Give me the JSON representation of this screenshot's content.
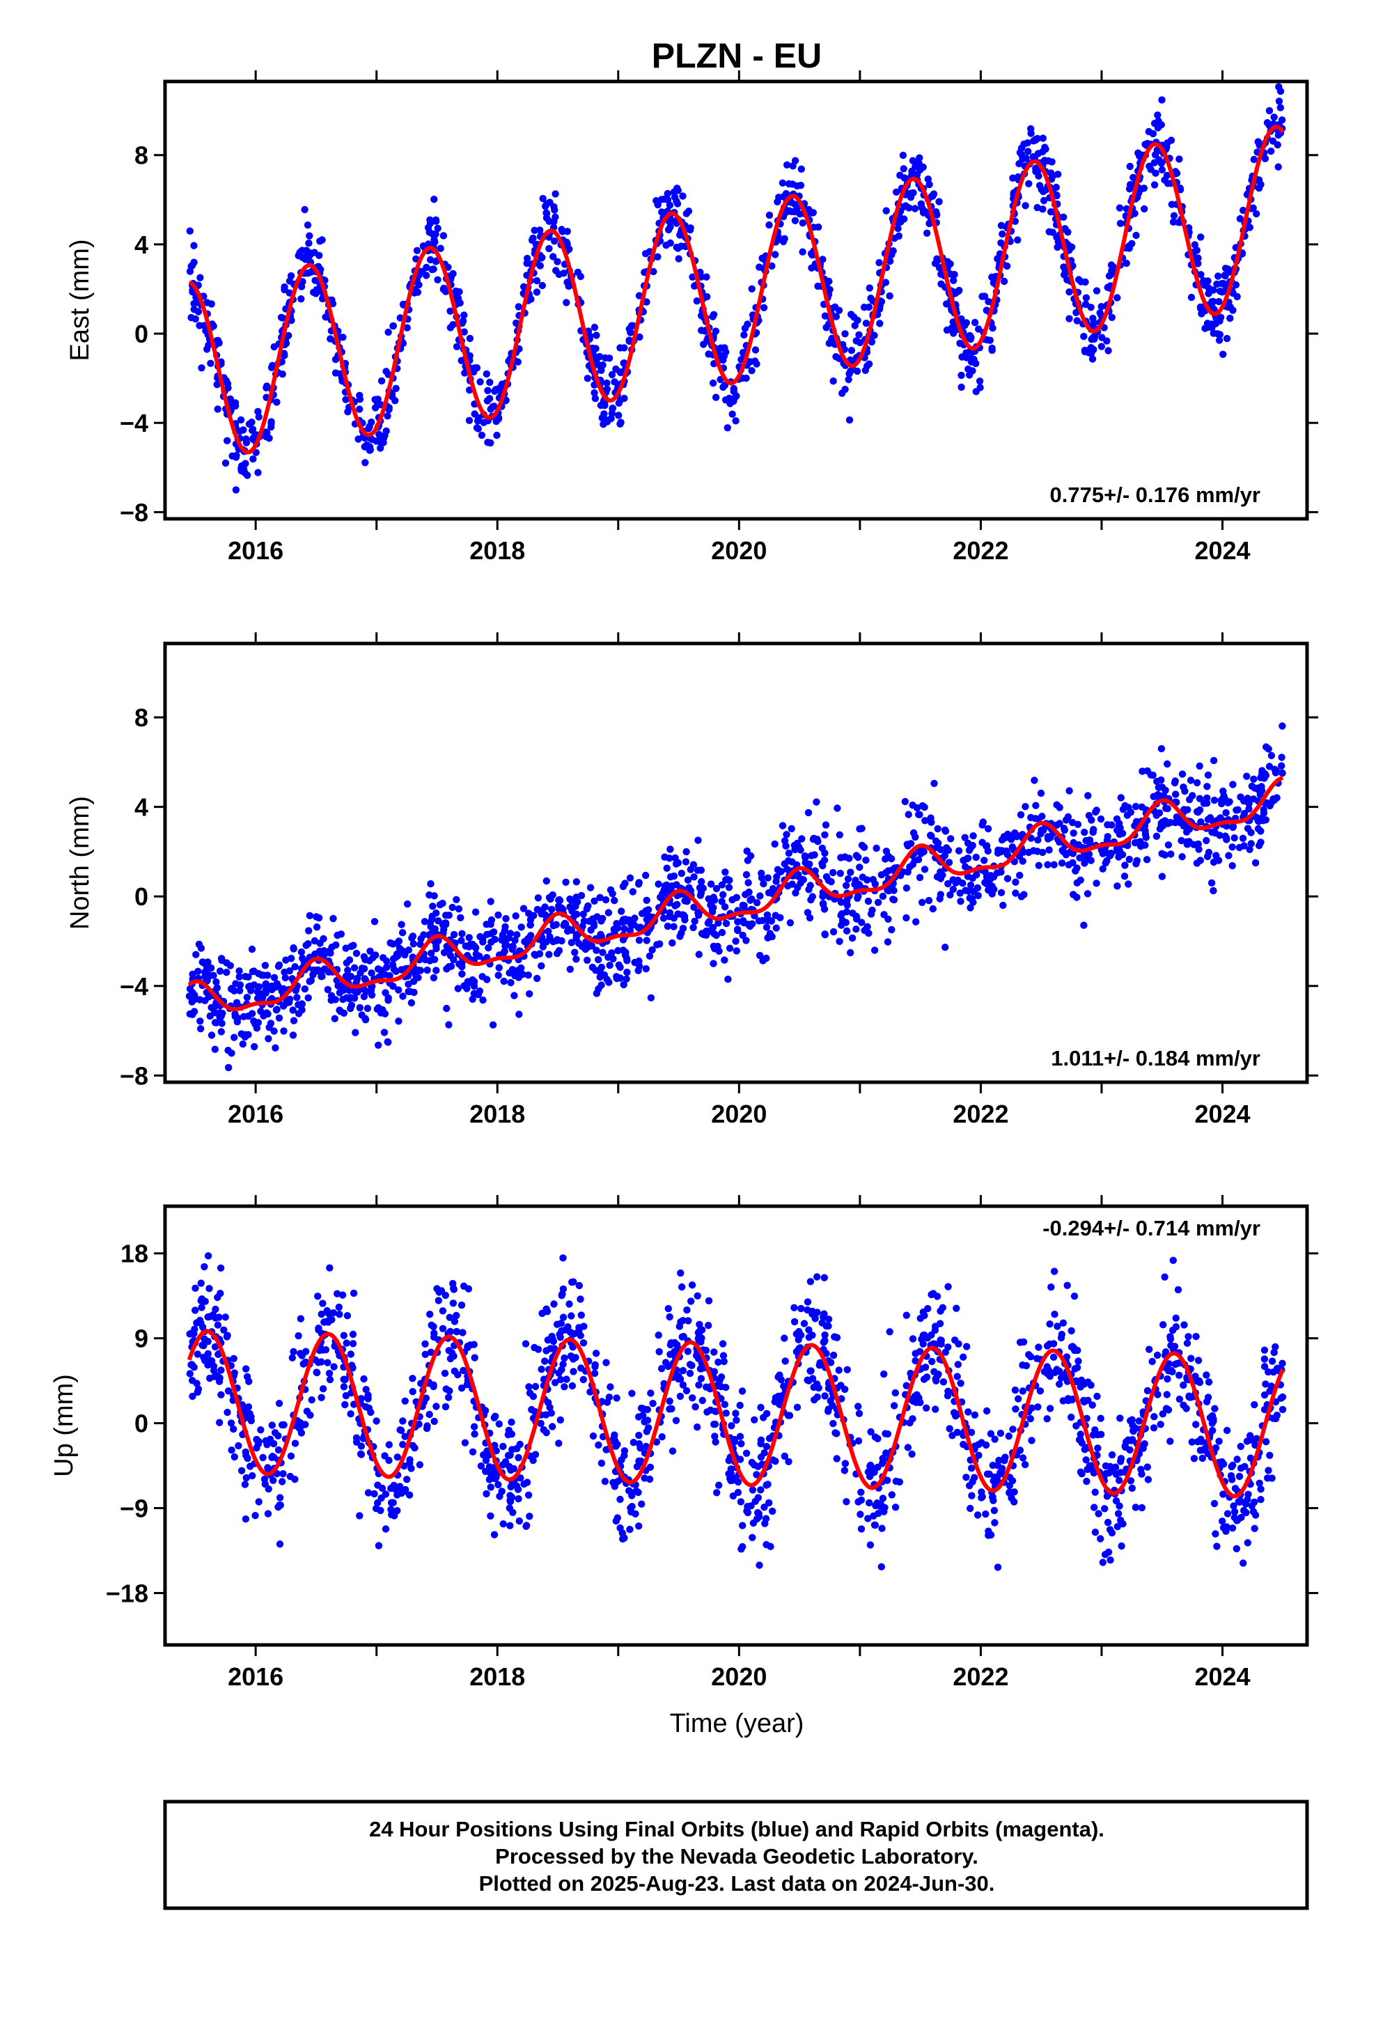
{
  "page": {
    "title": "PLZN - EU",
    "xlabel": "Time (year)",
    "footer": [
      "24 Hour Positions Using Final Orbits (blue) and Rapid Orbits (magenta).",
      "Processed by the Nevada Geodetic Laboratory.",
      "Plotted on 2025-Aug-23. Last data on 2024-Jun-30."
    ]
  },
  "colors": {
    "points": "#0000ff",
    "fit": "#ff0000",
    "frame": "#000000"
  },
  "chart_data": [
    {
      "type": "scatter",
      "title": "PLZN - EU",
      "ylabel": "East (mm)",
      "xlabel": "",
      "rate_label": "0.775+/- 0.176 mm/yr",
      "rate_position": "bottom-right",
      "xlim": [
        2015.25,
        2024.7
      ],
      "ylim": [
        -8.3,
        11.3
      ],
      "xticks": [
        2016,
        2018,
        2020,
        2022,
        2024
      ],
      "xticklabels": [
        "2016",
        "2018",
        "2020",
        "2022",
        "2024"
      ],
      "yticks": [
        -8,
        -4,
        0,
        4,
        8
      ],
      "yticklabels": [
        "−8",
        "−4",
        "0",
        "4",
        "8"
      ],
      "x_start": 2015.45,
      "x_end": 2024.5,
      "grid": false,
      "series": [
        {
          "name": "Final Orbits (blue)",
          "kind": "points",
          "model": {
            "offset": -1.7,
            "rate": 0.775,
            "annual_amplitude": 4.0,
            "annual_phase_year": 0.44,
            "semiannual_amplitude": 0.0,
            "noise": 0.85
          }
        },
        {
          "kind": "fit",
          "model": {
            "offset": -1.7,
            "rate": 0.775,
            "annual_amplitude": 4.0,
            "annual_phase_year": 0.44,
            "semiannual_amplitude": 0.0
          }
        }
      ]
    },
    {
      "type": "scatter",
      "title": "",
      "ylabel": "North (mm)",
      "xlabel": "",
      "rate_label": "1.011+/- 0.184 mm/yr",
      "rate_position": "bottom-right",
      "xlim": [
        2015.25,
        2024.7
      ],
      "ylim": [
        -8.3,
        11.3
      ],
      "xticks": [
        2016,
        2018,
        2020,
        2022,
        2024
      ],
      "xticklabels": [
        "2016",
        "2018",
        "2020",
        "2022",
        "2024"
      ],
      "yticks": [
        -8,
        -4,
        0,
        4,
        8
      ],
      "yticklabels": [
        "−8",
        "−4",
        "0",
        "4",
        "8"
      ],
      "x_start": 2015.45,
      "x_end": 2024.5,
      "grid": false,
      "series": [
        {
          "name": "Final Orbits (blue)",
          "kind": "points",
          "model": {
            "offset": -4.9,
            "rate": 1.011,
            "annual_amplitude": 0.75,
            "annual_phase_year": 0.5,
            "semiannual_amplitude": 0.3,
            "noise": 1.1
          }
        },
        {
          "kind": "fit",
          "model": {
            "offset": -4.9,
            "rate": 1.011,
            "annual_amplitude": 0.75,
            "annual_phase_year": 0.5,
            "semiannual_amplitude": 0.3
          }
        }
      ]
    },
    {
      "type": "scatter",
      "title": "",
      "ylabel": "Up (mm)",
      "xlabel": "Time (year)",
      "rate_label": "-0.294+/- 0.714 mm/yr",
      "rate_position": "top-right",
      "xlim": [
        2015.25,
        2024.7
      ],
      "ylim": [
        -23.5,
        23.0
      ],
      "xticks": [
        2016,
        2018,
        2020,
        2022,
        2024
      ],
      "xticklabels": [
        "2016",
        "2018",
        "2020",
        "2022",
        "2024"
      ],
      "yticks": [
        -18,
        -9,
        0,
        9,
        18
      ],
      "yticklabels": [
        "−18",
        "−9",
        "0",
        "9",
        "18"
      ],
      "x_start": 2015.45,
      "x_end": 2024.5,
      "grid": false,
      "series": [
        {
          "name": "Final Orbits (blue)",
          "kind": "points",
          "model": {
            "offset": 2.3,
            "rate": -0.294,
            "annual_amplitude": 7.5,
            "annual_phase_year": 0.6,
            "semiannual_amplitude": 0.0,
            "noise": 3.6
          }
        },
        {
          "kind": "fit",
          "model": {
            "offset": 2.3,
            "rate": -0.294,
            "annual_amplitude": 7.5,
            "annual_phase_year": 0.6,
            "semiannual_amplitude": 0.0
          }
        }
      ]
    }
  ]
}
